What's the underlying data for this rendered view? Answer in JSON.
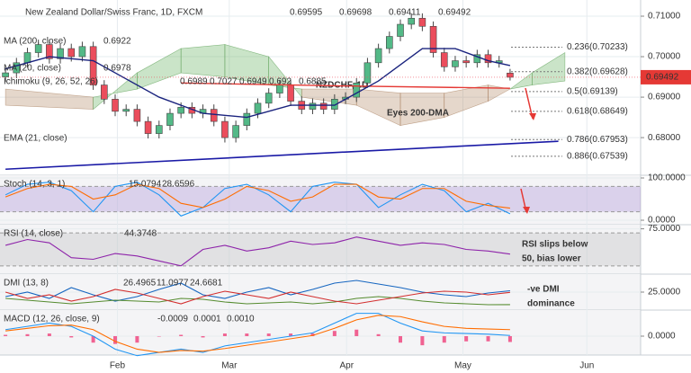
{
  "chart_data": [
    {
      "type": "candlestick",
      "title": "New Zealand Dollar/Swiss Franc, 1D, FXCM",
      "watermark": "NZDCHF, 1D",
      "annotation": "Eyes 200-DMA",
      "up_color": "#53b987",
      "down_color": "#eb4d5c",
      "xlim": [
        -0.5,
        57.9
      ],
      "xticks": [
        {
          "value": 10.2,
          "label": "Feb"
        },
        {
          "value": 20.4,
          "label": "Mar"
        },
        {
          "value": 31.1,
          "label": "Apr"
        },
        {
          "value": 41.7,
          "label": "May"
        },
        {
          "value": 53.0,
          "label": "Jun"
        }
      ],
      "ylim": [
        0.6707,
        0.714
      ],
      "yticks": [
        {
          "value": 0.71,
          "label": "0.71000"
        },
        {
          "value": 0.7,
          "label": "0.70000"
        },
        {
          "value": 0.69,
          "label": "0.69000"
        },
        {
          "value": 0.68,
          "label": "0.68000"
        }
      ],
      "grid": true,
      "open": [
        0.695,
        0.696,
        0.6985,
        0.701,
        0.703,
        0.6995,
        0.702,
        0.7,
        0.7025,
        0.693,
        0.6895,
        0.6865,
        0.687,
        0.684,
        0.681,
        0.683,
        0.686,
        0.6875,
        0.686,
        0.687,
        0.684,
        0.68,
        0.683,
        0.686,
        0.6885,
        0.691,
        0.693,
        0.689,
        0.687,
        0.6885,
        0.687,
        0.6895,
        0.69,
        0.6935,
        0.6985,
        0.702,
        0.705,
        0.708,
        0.7095,
        0.7075,
        0.701,
        0.6975,
        0.699,
        0.6985,
        0.7005,
        0.6985,
        0.69595
      ],
      "high": [
        0.6972,
        0.6997,
        0.7022,
        0.7042,
        0.7042,
        0.7032,
        0.7032,
        0.7037,
        0.7037,
        0.6942,
        0.6907,
        0.6882,
        0.6882,
        0.6852,
        0.6842,
        0.6872,
        0.6887,
        0.6887,
        0.6882,
        0.6882,
        0.6852,
        0.6842,
        0.6872,
        0.6897,
        0.6922,
        0.6942,
        0.6942,
        0.6902,
        0.6897,
        0.6897,
        0.6907,
        0.6912,
        0.6947,
        0.6997,
        0.7032,
        0.7062,
        0.7092,
        0.7107,
        0.7107,
        0.7087,
        0.7022,
        0.7002,
        0.7002,
        0.7017,
        0.7017,
        0.7002,
        0.69698
      ],
      "low": [
        0.6938,
        0.6948,
        0.6973,
        0.6998,
        0.6983,
        0.6983,
        0.6988,
        0.6988,
        0.6918,
        0.6883,
        0.6853,
        0.6853,
        0.6828,
        0.6798,
        0.6798,
        0.6818,
        0.6848,
        0.6848,
        0.6848,
        0.6828,
        0.6788,
        0.6788,
        0.6818,
        0.6848,
        0.6873,
        0.6898,
        0.6878,
        0.6858,
        0.6858,
        0.6858,
        0.6858,
        0.6883,
        0.6888,
        0.6923,
        0.6973,
        0.7008,
        0.7038,
        0.7068,
        0.7063,
        0.6998,
        0.6963,
        0.6963,
        0.6973,
        0.6973,
        0.6973,
        0.6973,
        0.69411
      ],
      "close": [
        0.696,
        0.6985,
        0.701,
        0.703,
        0.6995,
        0.702,
        0.7,
        0.7025,
        0.693,
        0.6895,
        0.6865,
        0.687,
        0.684,
        0.681,
        0.683,
        0.686,
        0.6875,
        0.686,
        0.687,
        0.684,
        0.68,
        0.683,
        0.686,
        0.6885,
        0.691,
        0.693,
        0.689,
        0.687,
        0.6885,
        0.687,
        0.6895,
        0.69,
        0.6935,
        0.6985,
        0.702,
        0.705,
        0.708,
        0.7095,
        0.7075,
        0.701,
        0.6975,
        0.699,
        0.6985,
        0.7005,
        0.6985,
        0.699,
        0.69492
      ],
      "overlays": [
        {
          "name": "MA (200, close)",
          "color": "#e53935",
          "last": 0.6922,
          "x": [
            16,
            30,
            46
          ],
          "values": [
            0.6935,
            0.6928,
            0.6922
          ]
        },
        {
          "name": "MA (20, close)",
          "color": "#1a237e",
          "last": 0.6978,
          "x": [
            0,
            4,
            8,
            10,
            14,
            18,
            22,
            26,
            30,
            34,
            38,
            41,
            44,
            46
          ],
          "values": [
            0.697,
            0.7,
            0.699,
            0.696,
            0.69,
            0.686,
            0.685,
            0.688,
            0.688,
            0.694,
            0.702,
            0.702,
            0.699,
            0.6978
          ]
        },
        {
          "name": "Ichimoku (9, 26, 52, 26)",
          "values": [
            0.6989,
            0.7027,
            0.6949,
            0.692,
            0.6885
          ],
          "colors": [
            "#2196f3",
            "#b71c1c",
            "#4caf50",
            "#4caf50",
            "#b71c1c"
          ]
        },
        {
          "name": "EMA (21, close)"
        }
      ],
      "cloud": {
        "x": [
          0,
          8,
          12,
          16,
          20,
          24,
          27,
          32,
          36,
          40,
          44,
          46,
          48,
          51
        ],
        "span_a": [
          0.688,
          0.687,
          0.696,
          0.702,
          0.703,
          0.7,
          0.69,
          0.688,
          0.683,
          0.685,
          0.689,
          0.692,
          0.696,
          0.701
        ],
        "span_b": [
          0.692,
          0.69,
          0.692,
          0.696,
          0.695,
          0.693,
          0.692,
          0.692,
          0.691,
          0.691,
          0.693,
          0.692,
          0.693,
          0.694
        ]
      },
      "trendline": {
        "color": "#1a1aa6",
        "x": [
          0,
          50.4
        ],
        "values": [
          0.6722,
          0.6791
        ]
      },
      "fib_levels": [
        {
          "price": 0.70233,
          "label": "0.236(0.70233)",
          "color": "#333333"
        },
        {
          "price": 0.69628,
          "label": "0.382(0.69628)",
          "color": "#333333"
        },
        {
          "price": 0.69139,
          "label": "0.5(0.69139)",
          "color": "#2196f3"
        },
        {
          "price": 0.68649,
          "label": "0.618(0.68649)",
          "color": "#333333"
        },
        {
          "price": 0.67953,
          "label": "0.786(0.67953)",
          "color": "#333333"
        },
        {
          "price": 0.67539,
          "label": "0.886(0.67539)",
          "color": "#333333"
        }
      ]
    },
    {
      "type": "line",
      "title": "Stoch (14, 3, 1)",
      "ylim": [
        -10.6,
        106.4
      ],
      "yticks": [
        {
          "value": 100,
          "label": "100.0000"
        },
        {
          "value": 0,
          "label": "0.0000"
        }
      ],
      "bands": [
        20,
        80
      ],
      "band_color": "#7e57c2",
      "x": [
        0,
        2,
        4,
        6,
        8,
        10,
        12,
        14,
        16,
        18,
        20,
        22,
        24,
        26,
        28,
        30,
        32,
        34,
        36,
        38,
        40,
        42,
        44,
        46
      ],
      "series": [
        {
          "color": "#2196f3",
          "values": [
            60,
            85,
            90,
            70,
            20,
            80,
            90,
            60,
            10,
            30,
            75,
            85,
            60,
            20,
            80,
            90,
            85,
            30,
            60,
            85,
            70,
            20,
            40,
            15.0794
          ]
        },
        {
          "color": "#ff6d00",
          "values": [
            55,
            75,
            85,
            80,
            50,
            60,
            85,
            75,
            40,
            30,
            50,
            80,
            70,
            45,
            55,
            85,
            85,
            55,
            50,
            75,
            75,
            45,
            35,
            28.6596
          ]
        }
      ]
    },
    {
      "type": "line",
      "title": "RSI (14, close)",
      "ylim": [
        20,
        80
      ],
      "yticks": [
        {
          "value": 75,
          "label": "75.0000"
        }
      ],
      "bands": [
        30,
        70
      ],
      "band_color": "#9e9e9e",
      "annotation": [
        "RSI slips below",
        "50, bias lower"
      ],
      "x": [
        0,
        2,
        4,
        6,
        8,
        10,
        12,
        14,
        16,
        18,
        20,
        22,
        24,
        26,
        28,
        30,
        32,
        34,
        36,
        38,
        40,
        42,
        44,
        46
      ],
      "series": [
        {
          "color": "#8e24aa",
          "values": [
            55,
            62,
            58,
            40,
            38,
            45,
            42,
            36,
            30,
            50,
            55,
            48,
            52,
            60,
            56,
            58,
            65,
            60,
            55,
            58,
            56,
            50,
            48,
            44.3748
          ]
        }
      ]
    },
    {
      "type": "line",
      "title": "DMI (13, 8)",
      "ylim": [
        5,
        45
      ],
      "yticks": [
        {
          "value": 25,
          "label": "25.0000"
        }
      ],
      "annotation": [
        "-ve DMI",
        "dominance"
      ],
      "x": [
        0,
        2,
        4,
        6,
        8,
        10,
        12,
        14,
        16,
        18,
        20,
        22,
        24,
        26,
        28,
        30,
        32,
        34,
        36,
        38,
        40,
        42,
        44,
        46
      ],
      "series": [
        {
          "color": "#1565c0",
          "values": [
            20,
            25,
            18,
            30,
            22,
            15,
            20,
            28,
            35,
            22,
            18,
            25,
            30,
            22,
            28,
            35,
            38,
            34,
            30,
            25,
            22,
            20,
            24,
            26.4965
          ]
        },
        {
          "color": "#558b2f",
          "values": [
            18,
            16,
            14,
            12,
            14,
            16,
            15,
            14,
            18,
            17,
            14,
            12,
            13,
            14,
            12,
            14,
            18,
            20,
            18,
            15,
            13,
            12,
            11,
            11.0977
          ]
        },
        {
          "color": "#d32f2f",
          "values": [
            25,
            18,
            22,
            15,
            20,
            28,
            24,
            18,
            12,
            20,
            26,
            22,
            18,
            25,
            20,
            15,
            12,
            16,
            20,
            24,
            26,
            25,
            22,
            24.6681
          ]
        }
      ]
    },
    {
      "type": "macd",
      "title": "MACD (12, 26, close, 9)",
      "ylim": [
        -0.0029,
        0.004
      ],
      "yticks": [
        {
          "value": 0,
          "label": "0.0000"
        }
      ],
      "x": [
        0,
        2,
        4,
        6,
        8,
        10,
        12,
        14,
        16,
        18,
        20,
        22,
        24,
        26,
        28,
        30,
        32,
        34,
        36,
        38,
        40,
        42,
        44,
        46
      ],
      "histogram": {
        "color": "#f06292",
        "values": [
          0.0002,
          0.0003,
          0.0004,
          -0.0002,
          -0.001,
          -0.0012,
          -0.001,
          0,
          0.0002,
          -0.0002,
          0.0004,
          0.0004,
          0.0004,
          0.0004,
          0.0004,
          0.0008,
          0.001,
          0.0003,
          -0.001,
          -0.0014,
          -0.001,
          -0.0008,
          -0.0008,
          -0.0009
        ]
      },
      "series": [
        {
          "color": "#2196f3",
          "values": [
            0.001,
            0.0015,
            0.002,
            0.0015,
            0,
            -0.002,
            -0.003,
            -0.0025,
            -0.002,
            -0.0025,
            -0.0015,
            -0.001,
            -0.0005,
            0,
            0.0005,
            0.002,
            0.0035,
            0.0035,
            0.002,
            0.0008,
            0.0005,
            0.0004,
            0.0003,
            0.0001
          ]
        },
        {
          "color": "#ff6d00",
          "last_label": "0.0010",
          "values": [
            0.0008,
            0.0012,
            0.0016,
            0.0017,
            0.001,
            -0.0008,
            -0.002,
            -0.0025,
            -0.0022,
            -0.0023,
            -0.0019,
            -0.0014,
            -0.0009,
            -0.0004,
            0.0001,
            0.0012,
            0.0025,
            0.0032,
            0.003,
            0.0022,
            0.0015,
            0.0012,
            0.0011,
            0.001
          ]
        }
      ]
    }
  ]
}
